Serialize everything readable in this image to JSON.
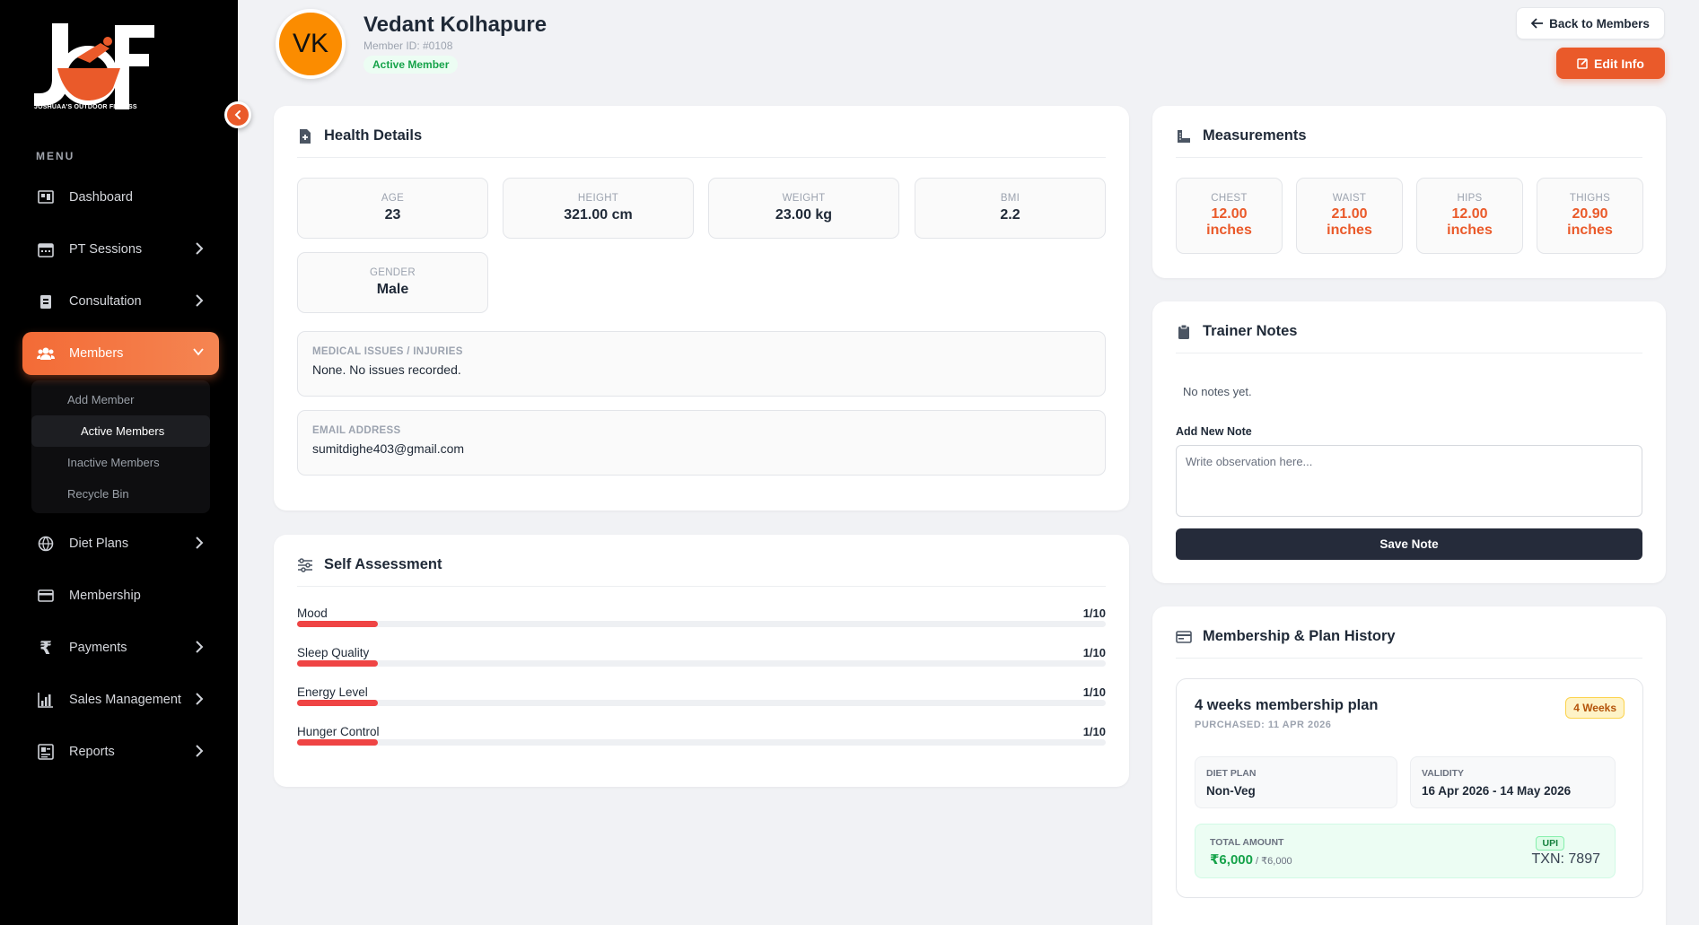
{
  "brand": {
    "tagline": "JOSHUAA'S OUTDOOR FITNESS",
    "accent": "#ea5a2a"
  },
  "sidebar": {
    "menu_title": "MENU",
    "items": [
      {
        "label": "Dashboard",
        "icon": "dashboard-icon"
      },
      {
        "label": "PT Sessions",
        "icon": "calendar-icon"
      },
      {
        "label": "Consultation",
        "icon": "clipboard-icon"
      },
      {
        "label": "Members",
        "icon": "users-icon"
      },
      {
        "label": "Diet Plans",
        "icon": "globe-icon"
      },
      {
        "label": "Membership",
        "icon": "card-icon"
      },
      {
        "label": "Payments",
        "icon": "rupee-icon"
      },
      {
        "label": "Sales Management",
        "icon": "chart-icon"
      },
      {
        "label": "Reports",
        "icon": "report-icon"
      }
    ],
    "members_sub": [
      "Add Member",
      "Active Members",
      "Inactive Members",
      "Recycle Bin"
    ]
  },
  "member": {
    "initials": "VK",
    "name": "Vedant Kolhapure",
    "id": "Member ID: #0108",
    "status": "Active Member"
  },
  "header": {
    "back_label": "Back to Members",
    "edit_label": "Edit Info"
  },
  "health": {
    "title": "Health Details",
    "stats": [
      {
        "label": "AGE",
        "value": "23"
      },
      {
        "label": "HEIGHT",
        "value": "321.00 cm"
      },
      {
        "label": "WEIGHT",
        "value": "23.00 kg"
      },
      {
        "label": "BMI",
        "value": "2.2"
      },
      {
        "label": "GENDER",
        "value": "Male"
      }
    ],
    "medical_label": "MEDICAL ISSUES / INJURIES",
    "medical_value": "None. No issues recorded.",
    "email_label": "EMAIL ADDRESS",
    "email_value": "sumitdighe403@gmail.com"
  },
  "self_assessment": {
    "title": "Self Assessment",
    "rows": [
      {
        "label": "Mood",
        "score": "1/10",
        "value": 0.1
      },
      {
        "label": "Sleep Quality",
        "score": "1/10",
        "value": 0.1
      },
      {
        "label": "Energy Level",
        "score": "1/10",
        "value": 0.1
      },
      {
        "label": "Hunger Control",
        "score": "1/10",
        "value": 0.1
      }
    ]
  },
  "measurements": {
    "title": "Measurements",
    "items": [
      {
        "label": "CHEST",
        "value": "12.00",
        "unit": "inches"
      },
      {
        "label": "WAIST",
        "value": "21.00",
        "unit": "inches"
      },
      {
        "label": "HIPS",
        "value": "12.00",
        "unit": "inches"
      },
      {
        "label": "THIGHS",
        "value": "20.90",
        "unit": "inches"
      }
    ]
  },
  "notes": {
    "title": "Trainer Notes",
    "empty": "No notes yet.",
    "add_label": "Add New Note",
    "placeholder": "Write observation here...",
    "save_label": "Save Note"
  },
  "history": {
    "title": "Membership & Plan History",
    "plan_title": "4 weeks membership plan",
    "purchased": "PURCHASED: 11 APR 2026",
    "badge": "4 Weeks",
    "diet_label": "DIET PLAN",
    "diet_value": "Non-Veg",
    "validity_label": "VALIDITY",
    "validity_value": "16 Apr 2026 - 14 May 2026",
    "amount_label": "TOTAL AMOUNT",
    "amount": "₹6,000",
    "amount_total": " / ₹6,000",
    "method": "UPI",
    "txn": "TXN: 7897"
  }
}
